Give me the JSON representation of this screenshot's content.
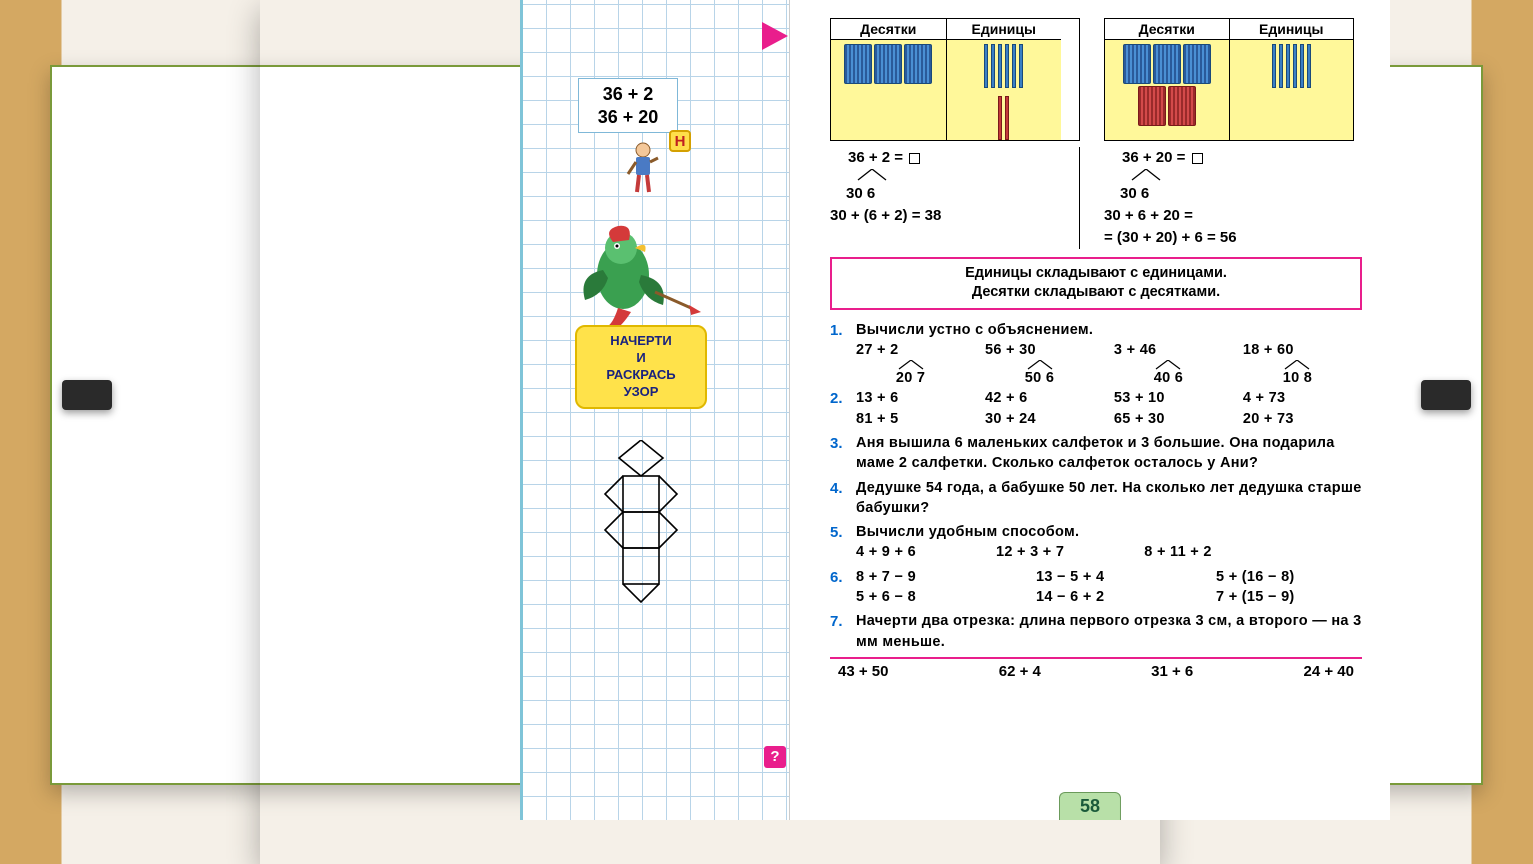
{
  "colors": {
    "wood": "#d4a862",
    "slide_bg": "#f5f0e8",
    "frame_border": "#7a9a3a",
    "grid_line": "#b8d4e8",
    "grid_edge": "#7fc4d8",
    "pink": "#e91e8c",
    "yellow_bg": "#ffe24a",
    "yellow_border": "#e0b800",
    "yellow_cell": "#fff89a",
    "blue_stick": "#3a7fc4",
    "red_stick": "#c43a3a",
    "task_num": "#0066cc",
    "page_tab_bg": "#b8e0a8",
    "page_tab_text": "#1a5a3a",
    "clip": "#2a2a2a",
    "n_badge_bg": "#ffde4a",
    "n_badge_text": "#c02020"
  },
  "left": {
    "eq1": "36 + 2",
    "eq2": "36 + 20",
    "n_badge": "Н",
    "yellow_label_lines": [
      "НАЧЕРТИ",
      "И",
      "РАСКРАСЬ",
      "УЗОР"
    ]
  },
  "place_headers": {
    "tens": "Десятки",
    "ones": "Единицы"
  },
  "diagram1": {
    "tens_bundles_row1": 3,
    "ones_sticks_row1": 6,
    "ones_sticks_row2": 2,
    "stick_color_row2": "red"
  },
  "diagram2": {
    "tens_bundles_row1": 3,
    "ones_sticks_row1": 6,
    "tens_bundles_row2": 2,
    "bundle_color_row2": "red"
  },
  "worked1": {
    "line1_pre": "36 + 2 = ",
    "split": "30  6",
    "line3": "30 + (6 + 2) = 38"
  },
  "worked2": {
    "line1_pre": "36 + 20 = ",
    "split": "30  6",
    "line3": "30 + 6 + 20  =",
    "line4": "=  (30 + 20) + 6 = 56"
  },
  "rule": {
    "line1": "Единицы  складывают  с  единицами.",
    "line2": "Десятки  складывают  с  десятками."
  },
  "tasks": {
    "t1": {
      "num": "1.",
      "title": "Вычисли  устно  с  объяснением.",
      "row": [
        "27 + 2",
        "56 + 30",
        "3 + 46",
        "18 + 60"
      ],
      "splits": [
        "20  7",
        "50  6",
        "40  6",
        "10  8"
      ]
    },
    "t2": {
      "num": "2.",
      "row1": [
        "13 + 6",
        "42 + 6",
        "53 + 10",
        "4 + 73"
      ],
      "row2": [
        "81 + 5",
        "30 + 24",
        "65 + 30",
        "20 + 73"
      ]
    },
    "t3": {
      "num": "3.",
      "text": "Аня  вышила  6  маленьких  салфеток  и  3  большие.  Она  подарила  маме  2  салфетки.  Сколько салфеток  осталось  у  Ани?"
    },
    "t4": {
      "num": "4.",
      "text": "Дедушке  54  года,  а  бабушке  50  лет.  На  сколько  лет  дедушка  старше  бабушки?"
    },
    "t5": {
      "num": "5.",
      "title": "Вычисли  удобным способом.",
      "row": [
        "4 + 9 + 6",
        "12 + 3 + 7",
        "8 + 11 + 2"
      ]
    },
    "t6": {
      "num": "6.",
      "row1": [
        "8 + 7 − 9",
        "13 − 5 + 4",
        "5 + (16 − 8)"
      ],
      "row2": [
        "5 + 6 − 8",
        "14 − 6 + 2",
        "7 + (15 − 9)"
      ]
    },
    "t7": {
      "num": "7.",
      "text": "Начерти  два  отрезка:  длина  первого  отрезка 3 см,  а  второго  —  на  3  мм  меньше."
    }
  },
  "bottom": [
    "43 + 50",
    "62 + 4",
    "31 + 6",
    "24 + 40"
  ],
  "q_mark": "?",
  "page_num": "58"
}
